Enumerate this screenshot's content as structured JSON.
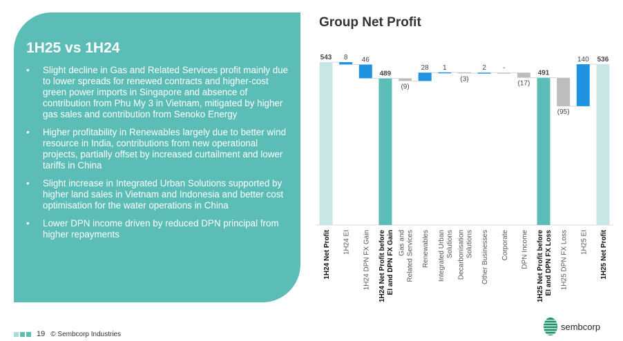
{
  "panel": {
    "title": "1H25 vs 1H24",
    "bullets": [
      "Slight decline in Gas and Related Services profit mainly due to lower spreads for renewed contracts and higher-cost green power imports in Singapore and absence of contribution from Phu My 3 in Vietnam, mitigated by higher gas sales and contribution from Senoko Energy",
      "Higher profitability in Renewables largely due to better wind resource in India, contributions from new operational projects, partially offset by increased curtailment and lower tariffs in China",
      "Slight increase in Integrated Urban Solutions supported by higher land sales in Vietnam and Indonesia and better cost optimisation for the water operations in China",
      "Lower DPN income driven by reduced DPN principal from higher repayments"
    ]
  },
  "chart_data": {
    "type": "waterfall",
    "title": "Group Net Profit",
    "ylim": [
      0,
      543
    ],
    "categories": [
      [
        "1H24 Net Profit"
      ],
      [
        "1H24 EI"
      ],
      [
        "1H24 DPN FX Gain"
      ],
      [
        "1H24 Net Profit before",
        "EI and DPN FX Gain"
      ],
      [
        "Gas and",
        "Related Services"
      ],
      [
        "Renewables"
      ],
      [
        "Integrated Urban",
        "Solutions"
      ],
      [
        "Decarbonisation",
        "Solutions"
      ],
      [
        "Other Businesses"
      ],
      [
        "Corporate"
      ],
      [
        "DPN Income"
      ],
      [
        "1H25 Net Profit before",
        "EI and DPN FX Loss"
      ],
      [
        "1H25 DPN FX Loss"
      ],
      [
        "1H25 EI"
      ],
      [
        "1H25 Net Profit"
      ]
    ],
    "bold": [
      true,
      false,
      false,
      true,
      false,
      false,
      false,
      false,
      false,
      false,
      false,
      true,
      false,
      false,
      true
    ],
    "values": [
      543,
      -8,
      -46,
      489,
      -9,
      28,
      1,
      -3,
      2,
      0,
      -17,
      491,
      -95,
      140,
      536
    ],
    "kinds": [
      "total",
      "change",
      "change",
      "subtotal",
      "change",
      "change",
      "change",
      "change",
      "change",
      "change",
      "change",
      "subtotal",
      "change",
      "change",
      "total"
    ],
    "labels": [
      "543",
      "8",
      "46",
      "489",
      "(9)",
      "28",
      "1",
      "(3)",
      "2",
      "-",
      "(17)",
      "491",
      "(95)",
      "140",
      "536"
    ],
    "colors": [
      "#c8e6e6",
      "#1f93e0",
      "#1f93e0",
      "#5bbdb6",
      "#bdbdbd",
      "#1f93e0",
      "#1f93e0",
      "#bdbdbd",
      "#1f93e0",
      "#bdbdbd",
      "#bdbdbd",
      "#5bbdb6",
      "#bdbdbd",
      "#1f93e0",
      "#c8e6e6"
    ]
  },
  "footer": {
    "page": "19",
    "copyright": "© Sembcorp Industries",
    "logo": "sembcorp"
  }
}
